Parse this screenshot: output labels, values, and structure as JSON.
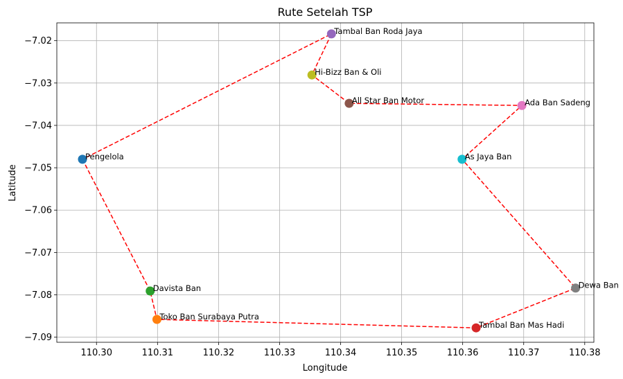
{
  "chart_data": {
    "type": "scatter",
    "title": "Rute Setelah TSP",
    "xlabel": "Longitude",
    "ylabel": "Latitude",
    "xlim": [
      110.2935,
      110.3815
    ],
    "ylim": [
      -7.0912,
      -7.0158
    ],
    "grid": true,
    "x_ticks": [
      110.3,
      110.31,
      110.32,
      110.33,
      110.34,
      110.35,
      110.36,
      110.37,
      110.38
    ],
    "x_tick_labels": [
      "110.30",
      "110.31",
      "110.32",
      "110.33",
      "110.34",
      "110.35",
      "110.36",
      "110.37",
      "110.38"
    ],
    "y_ticks": [
      -7.02,
      -7.03,
      -7.04,
      -7.05,
      -7.06,
      -7.07,
      -7.08,
      -7.09
    ],
    "y_tick_labels": [
      "−7.02",
      "−7.03",
      "−7.04",
      "−7.05",
      "−7.06",
      "−7.07",
      "−7.08",
      "−7.09"
    ],
    "points": [
      {
        "label": "Pengelola",
        "x": 110.2977,
        "y": -7.048,
        "color": "#1f77b4"
      },
      {
        "label": "Toko Ban Surabaya Putra",
        "x": 110.3099,
        "y": -7.0858,
        "color": "#ff7f0e"
      },
      {
        "label": "Davista Ban",
        "x": 110.3088,
        "y": -7.0791,
        "color": "#2ca02c"
      },
      {
        "label": "Tambal Ban Mas Hadi",
        "x": 110.3622,
        "y": -7.0878,
        "color": "#d62728"
      },
      {
        "label": "Tambal Ban Roda Jaya",
        "x": 110.3385,
        "y": -7.0184,
        "color": "#9467bd"
      },
      {
        "label": "All Star Ban Motor",
        "x": 110.3414,
        "y": -7.0348,
        "color": "#8c564b"
      },
      {
        "label": "Ada Ban Sadeng",
        "x": 110.3697,
        "y": -7.0353,
        "color": "#e377c2"
      },
      {
        "label": "Dewa Ban",
        "x": 110.3785,
        "y": -7.0784,
        "color": "#7f7f7f"
      },
      {
        "label": "Hi-Bizz Ban & Oli",
        "x": 110.3353,
        "y": -7.0281,
        "color": "#bcbd22"
      },
      {
        "label": "As Jaya Ban",
        "x": 110.3599,
        "y": -7.048,
        "color": "#17becf"
      }
    ],
    "route_order": [
      0,
      2,
      1,
      3,
      7,
      9,
      6,
      5,
      8,
      4,
      0
    ],
    "route_color": "#ff0000",
    "route_style": "dashed"
  }
}
